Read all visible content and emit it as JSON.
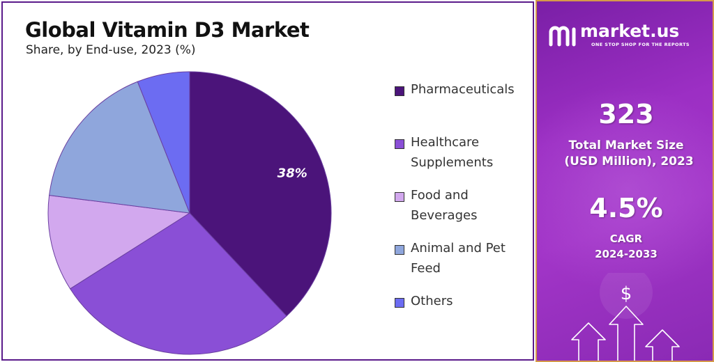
{
  "chart_data": {
    "type": "pie",
    "title": "Global Vitamin D3 Market",
    "subtitle": "Share, by End-use, 2023 (%)",
    "slices": [
      {
        "label": "Pharmaceuticals",
        "value": 38,
        "data_label": "38%",
        "color": "#4b147a"
      },
      {
        "label": "Healthcare Supplements",
        "value": 28,
        "data_label": "",
        "color": "#8a4fd6"
      },
      {
        "label": "Food and Beverages",
        "value": 11,
        "data_label": "",
        "color": "#d2a8ee"
      },
      {
        "label": "Animal and Pet Feed",
        "value": 17,
        "data_label": "",
        "color": "#8fa6dc"
      },
      {
        "label": "Others",
        "value": 6,
        "data_label": "",
        "color": "#6c6cf2"
      }
    ],
    "legend_position": "right"
  },
  "legend": [
    {
      "line1": "Pharmaceuticals",
      "line2": "",
      "color": "#4b147a"
    },
    {
      "line1": "Healthcare",
      "line2": "Supplements",
      "color": "#8a4fd6"
    },
    {
      "line1": "Food and",
      "line2": "Beverages",
      "color": "#d2a8ee"
    },
    {
      "line1": "Animal and Pet",
      "line2": "Feed",
      "color": "#8fa6dc"
    },
    {
      "line1": "Others",
      "line2": "",
      "color": "#6c6cf2"
    }
  ],
  "brand": {
    "name": "market.us",
    "tagline": "ONE STOP SHOP FOR THE REPORTS",
    "logo_icon": "market-us-logo-icon"
  },
  "stats": {
    "market_size_value": "323",
    "market_size_label_line1": "Total Market Size",
    "market_size_label_line2": "(USD Million), 2023",
    "cagr_value": "4.5%",
    "cagr_label_line1": "CAGR",
    "cagr_label_line2": "2024-2033"
  },
  "decor": {
    "currency_symbol": "$",
    "icon": "growth-arrows-icon"
  }
}
